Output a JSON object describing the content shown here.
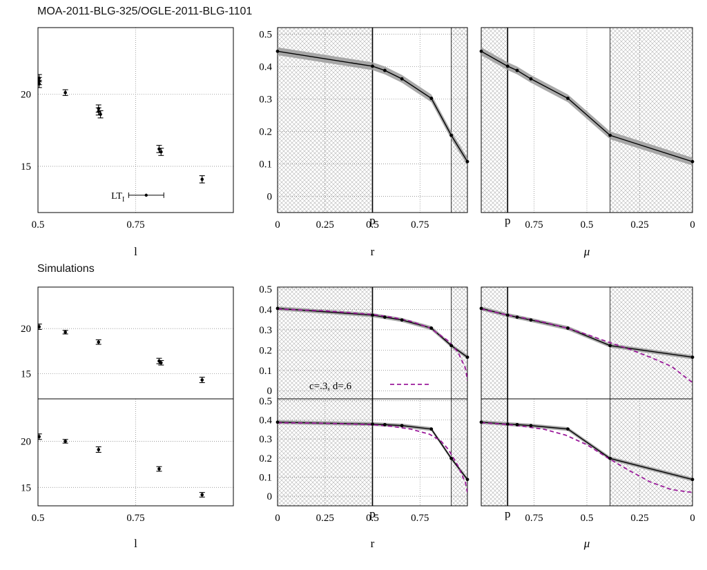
{
  "figure": {
    "title_top": "MOA-2011-BLG-325/OGLE-2011-BLG-1101",
    "title_bottom": "Simulations"
  },
  "colors": {
    "axis": "#000000",
    "grid": "#7a7a7a",
    "band": "#9a9a9a",
    "hatch": "#c8c8c8",
    "model": "#9b1a9b"
  },
  "chart_data": [
    {
      "id": "mag-top",
      "type": "scatter",
      "xlabel": "l",
      "ylabel": "",
      "xlim": [
        0.5,
        1.0
      ],
      "ylim": [
        11.8,
        24.6
      ],
      "xticks": [
        "0.5",
        "0.75"
      ],
      "xtick_values": [
        0.5,
        0.75
      ],
      "yticks": [
        "15",
        "20"
      ],
      "ytick_values": [
        15,
        20
      ],
      "points": [
        {
          "x": 0.503,
          "y": 20.9,
          "err": 0.25
        },
        {
          "x": 0.503,
          "y": 21.1,
          "err": 0.25
        },
        {
          "x": 0.503,
          "y": 20.7,
          "err": 0.25
        },
        {
          "x": 0.57,
          "y": 20.1,
          "err": 0.2
        },
        {
          "x": 0.655,
          "y": 19.0,
          "err": 0.25
        },
        {
          "x": 0.655,
          "y": 18.8,
          "err": 0.25
        },
        {
          "x": 0.66,
          "y": 18.6,
          "err": 0.25
        },
        {
          "x": 0.81,
          "y": 16.2,
          "err": 0.25
        },
        {
          "x": 0.815,
          "y": 16.0,
          "err": 0.25
        },
        {
          "x": 0.92,
          "y": 14.1,
          "err": 0.25
        }
      ],
      "annotation": {
        "label": "LT",
        "sub": "I",
        "x": 0.777,
        "y": 13.0,
        "xerr_low": 0.045,
        "xerr_high": 0.045
      }
    },
    {
      "id": "r-top",
      "type": "line",
      "xlabel": "r",
      "ylabel": "",
      "xlim": [
        0,
        1.0
      ],
      "ylim": [
        -0.05,
        0.52
      ],
      "xticks": [
        "0",
        "0.25",
        "0.5",
        "0.75"
      ],
      "xtick_values": [
        0,
        0.25,
        0.5,
        0.75
      ],
      "yticks": [
        "0",
        "0.1",
        "0.2",
        "0.3",
        "0.4",
        "0.5"
      ],
      "ytick_values": [
        0,
        0.1,
        0.2,
        0.3,
        0.4,
        0.5
      ],
      "p_marker": {
        "label": "p",
        "x": 0.5
      },
      "hatch_left": 0.5,
      "hatch_right": 0.915,
      "x": [
        0,
        0.5,
        0.565,
        0.655,
        0.81,
        0.915,
        1.0
      ],
      "y": [
        0.447,
        0.401,
        0.388,
        0.362,
        0.302,
        0.188,
        0.107
      ],
      "band_width": 0.012
    },
    {
      "id": "mu-top",
      "type": "line",
      "xlabel": "μ",
      "ylabel": "",
      "xlim": [
        1.0,
        0
      ],
      "ylim": [
        -0.05,
        0.52
      ],
      "xticks": [
        "0.75",
        "0.5",
        "0.25",
        "0"
      ],
      "xtick_values": [
        0.75,
        0.5,
        0.25,
        0
      ],
      "yticks": [],
      "ytick_values": [],
      "p_marker": {
        "label": "p",
        "x": 0.875
      },
      "hatch_left": 0.875,
      "hatch_right": 0.39,
      "x": [
        1.0,
        0.875,
        0.83,
        0.765,
        0.59,
        0.39,
        0.0
      ],
      "y": [
        0.447,
        0.401,
        0.388,
        0.362,
        0.302,
        0.188,
        0.107
      ],
      "band_width": 0.012
    },
    {
      "id": "mag-sim1",
      "type": "scatter",
      "xlabel": "",
      "ylabel": "",
      "xlim": [
        0.5,
        1.0
      ],
      "ylim": [
        12.2,
        24.6
      ],
      "xticks": [],
      "xtick_values": [],
      "yticks": [
        "15",
        "20"
      ],
      "ytick_values": [
        15,
        20
      ],
      "points": [
        {
          "x": 0.503,
          "y": 20.2,
          "err": 0.3
        },
        {
          "x": 0.57,
          "y": 19.6,
          "err": 0.2
        },
        {
          "x": 0.655,
          "y": 18.5,
          "err": 0.25
        },
        {
          "x": 0.81,
          "y": 16.4,
          "err": 0.3
        },
        {
          "x": 0.815,
          "y": 16.2,
          "err": 0.25
        },
        {
          "x": 0.92,
          "y": 14.3,
          "err": 0.3
        }
      ]
    },
    {
      "id": "r-sim1",
      "type": "line",
      "xlabel": "",
      "ylabel": "",
      "xlim": [
        0,
        1.0
      ],
      "ylim": [
        -0.04,
        0.51
      ],
      "xticks": [],
      "xtick_values": [],
      "yticks": [
        "0",
        "0.1",
        "0.2",
        "0.3",
        "0.4",
        "0.5"
      ],
      "ytick_values": [
        0,
        0.1,
        0.2,
        0.3,
        0.4,
        0.5
      ],
      "p_marker": null,
      "hatch_left": 0.5,
      "hatch_right": 0.915,
      "x": [
        0,
        0.5,
        0.565,
        0.655,
        0.81,
        0.915,
        1.0
      ],
      "y": [
        0.405,
        0.372,
        0.362,
        0.348,
        0.308,
        0.222,
        0.165
      ],
      "band_width": 0.01,
      "model": {
        "label": "c=.3, d=.6",
        "x": [
          0,
          0.25,
          0.5,
          0.6,
          0.7,
          0.8,
          0.9,
          0.95,
          0.99,
          1.0
        ],
        "y": [
          0.402,
          0.393,
          0.375,
          0.362,
          0.342,
          0.31,
          0.245,
          0.19,
          0.11,
          0.05
        ]
      }
    },
    {
      "id": "mu-sim1",
      "type": "line",
      "xlabel": "",
      "ylabel": "",
      "xlim": [
        1.0,
        0
      ],
      "ylim": [
        -0.04,
        0.51
      ],
      "xticks": [],
      "xtick_values": [],
      "yticks": [],
      "ytick_values": [],
      "p_marker": null,
      "hatch_left": 0.875,
      "hatch_right": 0.39,
      "x": [
        1.0,
        0.875,
        0.83,
        0.765,
        0.59,
        0.39,
        0.0
      ],
      "y": [
        0.405,
        0.372,
        0.362,
        0.348,
        0.308,
        0.222,
        0.165
      ],
      "band_width": 0.01,
      "model": {
        "label": "",
        "x": [
          1.0,
          0.875,
          0.8,
          0.7,
          0.6,
          0.5,
          0.4,
          0.3,
          0.2,
          0.1,
          0.0
        ],
        "y": [
          0.402,
          0.372,
          0.358,
          0.336,
          0.31,
          0.277,
          0.24,
          0.205,
          0.165,
          0.12,
          0.04
        ]
      }
    },
    {
      "id": "mag-sim2",
      "type": "scatter",
      "xlabel": "l",
      "ylabel": "",
      "xlim": [
        0.5,
        1.0
      ],
      "ylim": [
        13.0,
        24.6
      ],
      "xticks": [
        "0.5",
        "0.75"
      ],
      "xtick_values": [
        0.5,
        0.75
      ],
      "yticks": [
        "15",
        "20"
      ],
      "ytick_values": [
        15,
        20
      ],
      "points": [
        {
          "x": 0.503,
          "y": 20.5,
          "err": 0.3
        },
        {
          "x": 0.57,
          "y": 20.0,
          "err": 0.2
        },
        {
          "x": 0.655,
          "y": 19.1,
          "err": 0.3
        },
        {
          "x": 0.81,
          "y": 17.0,
          "err": 0.25
        },
        {
          "x": 0.92,
          "y": 14.2,
          "err": 0.25
        }
      ]
    },
    {
      "id": "r-sim2",
      "type": "line",
      "xlabel": "r",
      "ylabel": "",
      "xlim": [
        0,
        1.0
      ],
      "ylim": [
        -0.05,
        0.51
      ],
      "xticks": [
        "0",
        "0.25",
        "0.5",
        "0.75"
      ],
      "xtick_values": [
        0,
        0.25,
        0.5,
        0.75
      ],
      "yticks": [
        "0",
        "0.1",
        "0.2",
        "0.3",
        "0.4",
        "0.5"
      ],
      "ytick_values": [
        0,
        0.1,
        0.2,
        0.3,
        0.4,
        0.5
      ],
      "p_marker": {
        "label": "p",
        "x": 0.5
      },
      "hatch_left": 0.5,
      "hatch_right": 0.915,
      "x": [
        0,
        0.5,
        0.565,
        0.655,
        0.81,
        0.915,
        1.0
      ],
      "y": [
        0.388,
        0.378,
        0.375,
        0.37,
        0.352,
        0.198,
        0.088
      ],
      "band_width": 0.01,
      "model": {
        "label": "",
        "x": [
          0,
          0.25,
          0.5,
          0.6,
          0.7,
          0.8,
          0.86,
          0.9,
          0.95,
          0.99,
          1.0
        ],
        "y": [
          0.385,
          0.382,
          0.375,
          0.366,
          0.352,
          0.325,
          0.29,
          0.245,
          0.16,
          0.07,
          0.02
        ]
      }
    },
    {
      "id": "mu-sim2",
      "type": "line",
      "xlabel": "μ",
      "ylabel": "",
      "xlim": [
        1.0,
        0
      ],
      "ylim": [
        -0.05,
        0.51
      ],
      "xticks": [
        "0.75",
        "0.5",
        "0.25",
        "0"
      ],
      "xtick_values": [
        0.75,
        0.5,
        0.25,
        0
      ],
      "yticks": [],
      "ytick_values": [],
      "p_marker": {
        "label": "p",
        "x": 0.875
      },
      "hatch_left": 0.875,
      "hatch_right": 0.39,
      "x": [
        1.0,
        0.875,
        0.83,
        0.765,
        0.59,
        0.39,
        0.0
      ],
      "y": [
        0.388,
        0.378,
        0.375,
        0.37,
        0.352,
        0.198,
        0.088
      ],
      "band_width": 0.01,
      "model": {
        "label": "",
        "x": [
          1.0,
          0.875,
          0.8,
          0.7,
          0.6,
          0.5,
          0.4,
          0.3,
          0.2,
          0.1,
          0.0
        ],
        "y": [
          0.385,
          0.376,
          0.366,
          0.35,
          0.32,
          0.27,
          0.2,
          0.135,
          0.075,
          0.035,
          0.02
        ]
      }
    }
  ]
}
